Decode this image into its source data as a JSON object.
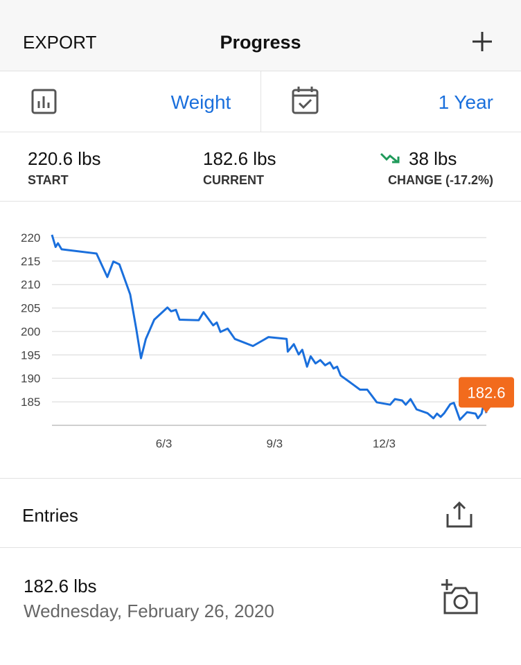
{
  "header": {
    "left": "EXPORT",
    "title": "Progress"
  },
  "selector": {
    "metric": "Weight",
    "range": "1 Year"
  },
  "stats": [
    {
      "value": "220.6 lbs",
      "label": "START"
    },
    {
      "value": "182.6 lbs",
      "label": "CURRENT"
    },
    {
      "value": "38 lbs",
      "label": "CHANGE (-17.2%)"
    }
  ],
  "chart_data": {
    "type": "line",
    "color": "#1a6fdc",
    "label_color": "#f26b1d",
    "grid": true,
    "x": [
      "3/2",
      "3/5",
      "3/7",
      "3/10",
      "4/8",
      "4/17",
      "4/22",
      "4/27",
      "5/6",
      "5/11",
      "5/15",
      "5/19",
      "5/26",
      "6/6",
      "6/9",
      "6/13",
      "6/16",
      "7/2",
      "7/6",
      "7/14",
      "7/17",
      "7/20",
      "7/26",
      "8/1",
      "8/16",
      "8/29",
      "9/13",
      "9/14",
      "9/19",
      "9/23",
      "9/26",
      "9/30",
      "10/3",
      "10/7",
      "10/11",
      "10/15",
      "10/19",
      "10/22",
      "10/25",
      "10/28",
      "11/4",
      "11/13",
      "11/19",
      "11/27",
      "12/8",
      "12/12",
      "12/18",
      "12/21",
      "12/25",
      "12/30",
      "1/8",
      "1/13",
      "1/16",
      "1/19",
      "1/22",
      "1/27",
      "1/30",
      "2/4",
      "2/10",
      "2/17",
      "2/19",
      "2/22",
      "2/24",
      "2/26"
    ],
    "values": [
      220.6,
      218.0,
      218.8,
      217.5,
      216.6,
      211.6,
      214.9,
      214.3,
      207.9,
      200.6,
      194.3,
      198.4,
      202.5,
      205.1,
      204.3,
      204.6,
      202.5,
      202.4,
      204.1,
      201.3,
      201.9,
      199.9,
      200.6,
      198.4,
      196.9,
      198.8,
      198.4,
      195.7,
      197.3,
      195.1,
      196.1,
      192.5,
      194.7,
      193.2,
      193.9,
      192.8,
      193.4,
      192.1,
      192.5,
      190.6,
      189.3,
      187.6,
      187.6,
      184.9,
      184.4,
      185.6,
      185.3,
      184.4,
      185.6,
      183.4,
      182.6,
      181.5,
      182.5,
      181.8,
      182.6,
      184.5,
      184.8,
      181.2,
      182.8,
      182.5,
      181.5,
      182.5,
      184.8,
      182.6
    ],
    "xlim": [
      "3/2",
      "2/26"
    ],
    "xticks": [
      "6/3",
      "9/3",
      "12/3"
    ],
    "ylim": [
      180,
      221
    ],
    "yticks": [
      185,
      190,
      195,
      200,
      205,
      210,
      215,
      220
    ]
  },
  "entries": {
    "title": "Entries",
    "items": [
      {
        "weight": "182.6 lbs",
        "date": "Wednesday, February 26, 2020"
      }
    ]
  }
}
